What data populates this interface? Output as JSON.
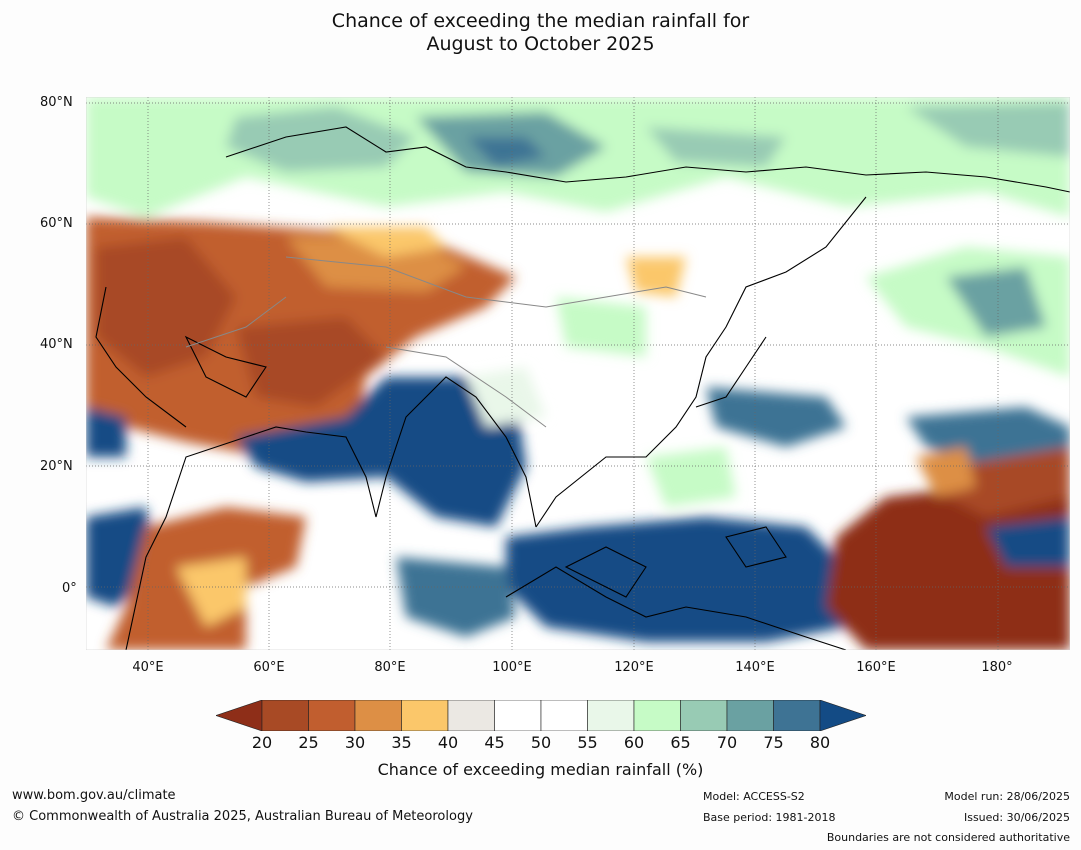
{
  "title": {
    "line1": "Chance of exceeding the median rainfall for",
    "line2": "August to October 2025"
  },
  "map": {
    "lat_labels": [
      "80°N",
      "60°N",
      "40°N",
      "20°N",
      "0°"
    ],
    "lon_labels": [
      "40°E",
      "60°E",
      "80°E",
      "100°E",
      "120°E",
      "140°E",
      "160°E",
      "180°"
    ]
  },
  "colorbar": {
    "ticks": [
      "20",
      "25",
      "30",
      "35",
      "40",
      "45",
      "50",
      "55",
      "60",
      "65",
      "70",
      "75",
      "80"
    ],
    "colors": [
      "#8e2e18",
      "#a84a25",
      "#c15e2f",
      "#dd8f45",
      "#fbc76a",
      "#ebe8e3",
      "#ffffff",
      "#ffffff",
      "#e9f7e9",
      "#c6fbc6",
      "#98cbb4",
      "#6aa1a2",
      "#3e7394",
      "#134b85"
    ],
    "label": "Chance of exceeding median rainfall (%)"
  },
  "footer": {
    "website": "www.bom.gov.au/climate",
    "copyright": "© Commonwealth of Australia 2025, Australian Bureau of Meteorology",
    "model": "Model: ACCESS-S2",
    "base_period": "Base period: 1981-2018",
    "model_run": "Model run: 28/06/2025",
    "issued": "Issued: 30/06/2025",
    "disclaimer": "Boundaries are not considered authoritative"
  }
}
